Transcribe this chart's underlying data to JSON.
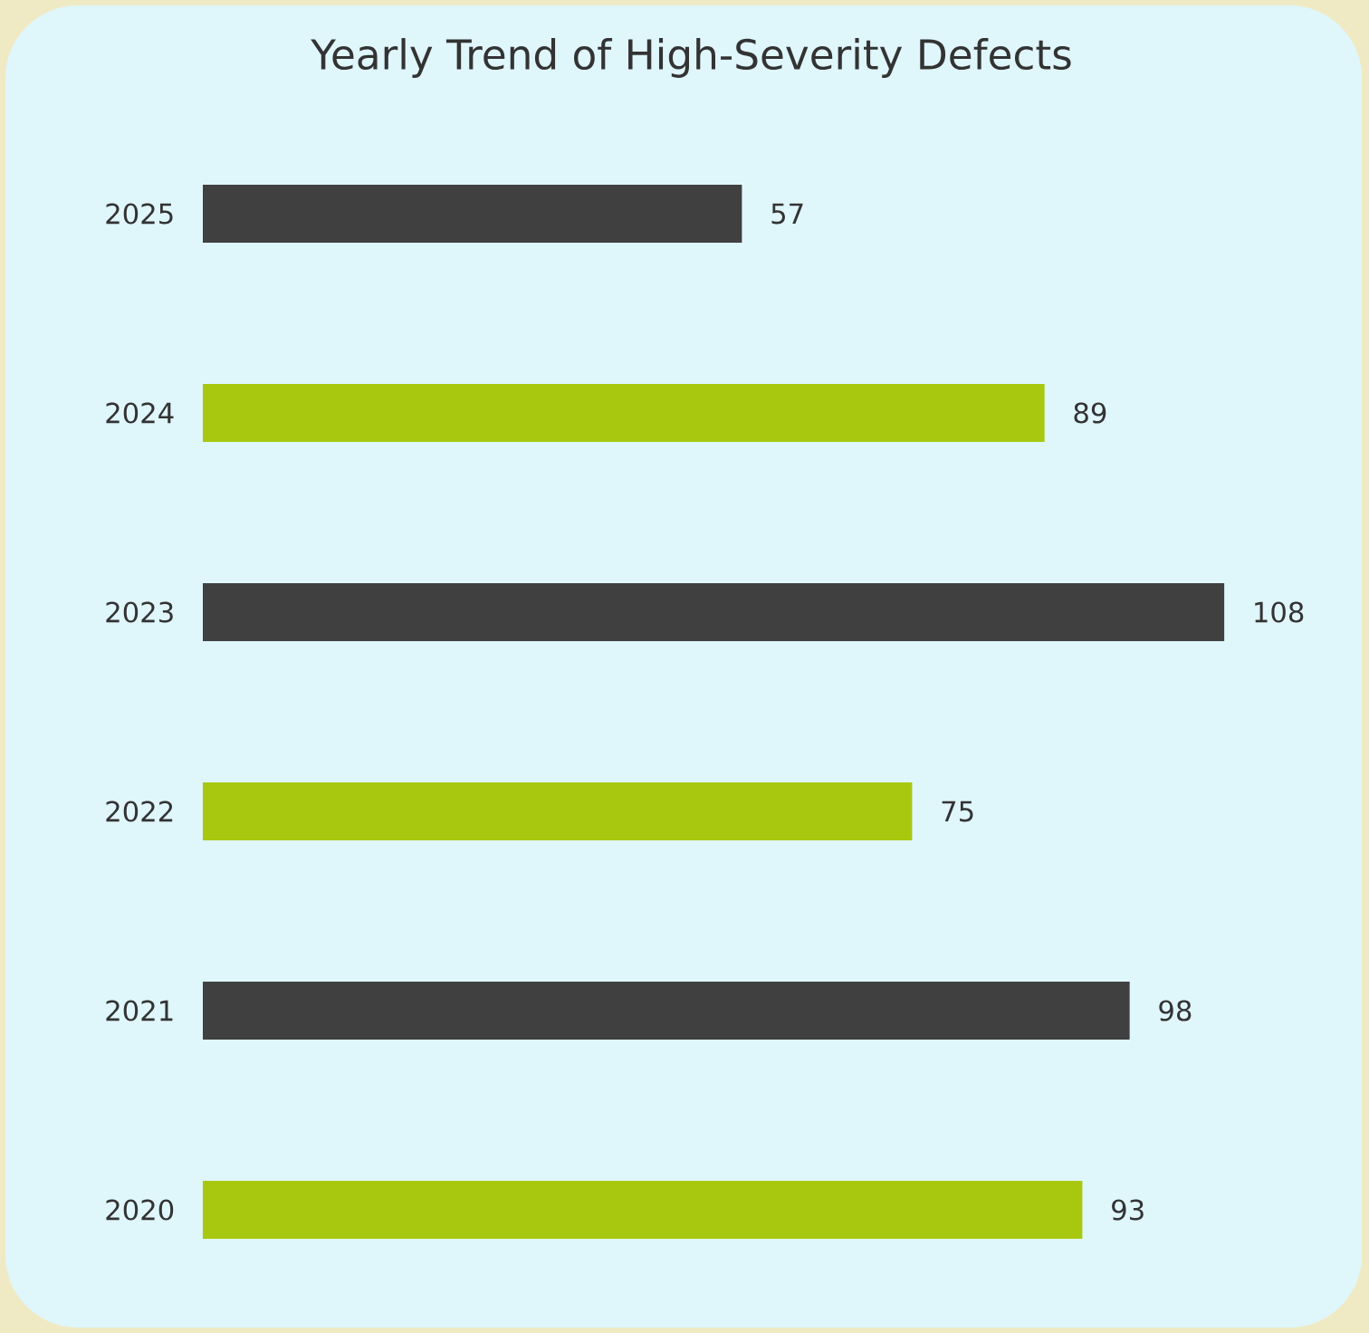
{
  "chart_data": {
    "type": "bar",
    "orientation": "horizontal",
    "title": "Yearly Trend of High-Severity Defects",
    "categories": [
      "2025",
      "2024",
      "2023",
      "2022",
      "2021",
      "2020"
    ],
    "values": [
      57,
      89,
      108,
      75,
      98,
      93
    ],
    "colors": [
      "#404040",
      "#a8c80f",
      "#404040",
      "#a8c80f",
      "#404040",
      "#a8c80f"
    ],
    "data_labels": true
  }
}
